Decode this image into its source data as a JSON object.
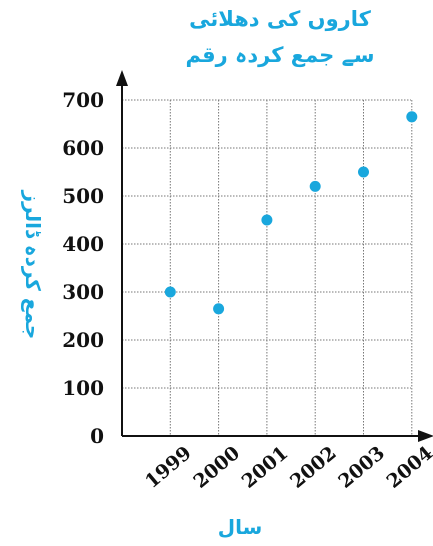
{
  "chart_data": {
    "type": "scatter",
    "title_line_1": "کاروں کی دھلائی",
    "title_line_2": "سے جمع کردہ رقم",
    "xlabel": "سال",
    "ylabel": "جمع کردہ ڈالرز",
    "x": [
      "1999",
      "2000",
      "2001",
      "2002",
      "2003",
      "2004"
    ],
    "y": [
      300,
      265,
      450,
      520,
      550,
      665
    ],
    "yticks": [
      0,
      100,
      200,
      300,
      400,
      500,
      600,
      700
    ],
    "ylim": [
      0,
      700
    ],
    "grid": true,
    "marker_color": "#19a7dd",
    "title_color": "#19a7dd"
  }
}
